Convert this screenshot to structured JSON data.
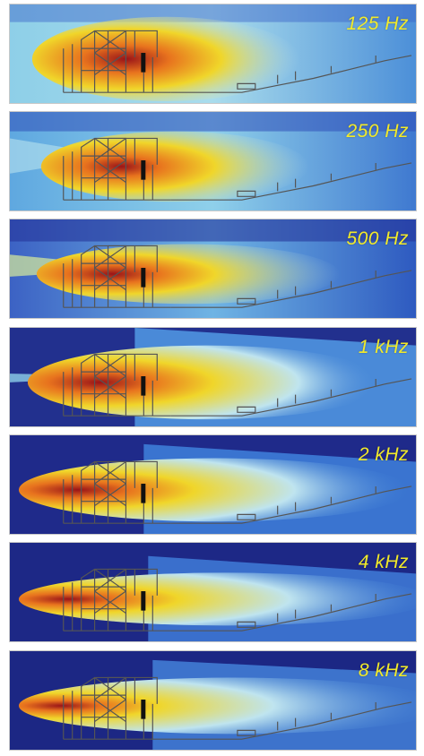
{
  "panels": [
    {
      "freq_label": "125 Hz"
    },
    {
      "freq_label": "250 Hz"
    },
    {
      "freq_label": "500 Hz"
    },
    {
      "freq_label": "1 kHz"
    },
    {
      "freq_label": "2 kHz"
    },
    {
      "freq_label": "4 kHz"
    },
    {
      "freq_label": "8 kHz"
    }
  ],
  "colors": {
    "background_low": "#1f2a8a",
    "mid_blue": "#3a7fd6",
    "light_cyan": "#bfe4ef",
    "yellow": "#f0d62a",
    "orange": "#e8731e",
    "red_core": "#a8161a",
    "label": "#f2ea2a",
    "structure_lines": "#666666"
  }
}
